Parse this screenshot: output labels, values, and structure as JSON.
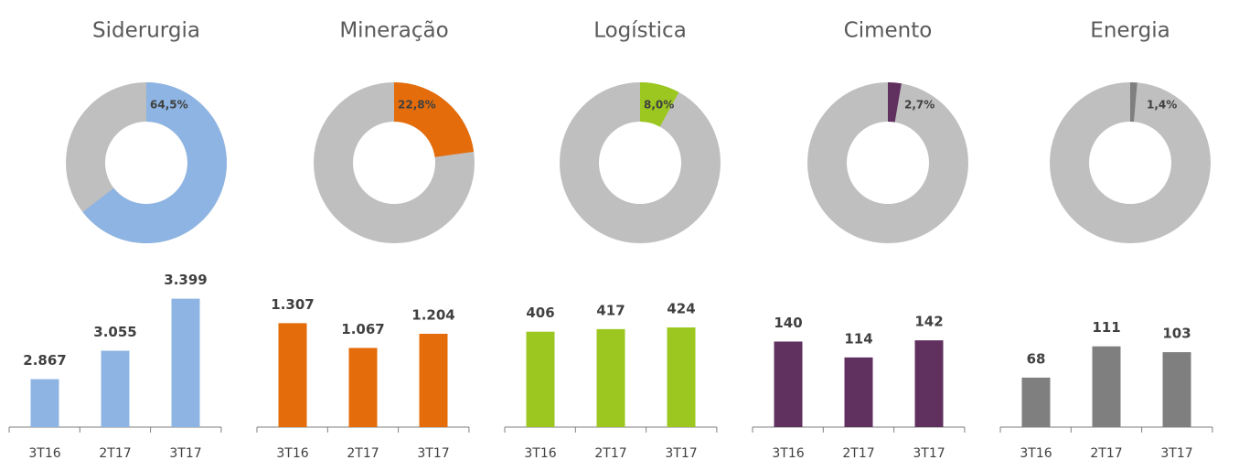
{
  "chart_data": [
    {
      "type": "donut",
      "title": "Siderurgia",
      "values": [
        64.5
      ],
      "value_labels": [
        "64,5%"
      ],
      "color": "#8db4e2",
      "track_color": "#bfbfbf"
    },
    {
      "type": "donut",
      "title": "Mineração",
      "values": [
        22.8
      ],
      "value_labels": [
        "22,8%"
      ],
      "color": "#e46c0a",
      "track_color": "#bfbfbf"
    },
    {
      "type": "donut",
      "title": "Logística",
      "values": [
        8.0
      ],
      "value_labels": [
        "8,0%"
      ],
      "color": "#9bc720",
      "track_color": "#bfbfbf"
    },
    {
      "type": "donut",
      "title": "Cimento",
      "values": [
        2.7
      ],
      "value_labels": [
        "2,7%"
      ],
      "color": "#60305f",
      "track_color": "#bfbfbf"
    },
    {
      "type": "donut",
      "title": "Energia",
      "values": [
        1.4
      ],
      "value_labels": [
        "1,4%"
      ],
      "color": "#7f7f7f",
      "track_color": "#bfbfbf"
    },
    {
      "type": "bar",
      "categories": [
        "3T16",
        "2T17",
        "3T17"
      ],
      "values": [
        2867,
        3055,
        3399
      ],
      "value_labels": [
        "2.867",
        "3.055",
        "3.399"
      ],
      "color": "#8db4e2",
      "ylim": [
        2550,
        3560
      ]
    },
    {
      "type": "bar",
      "categories": [
        "3T16",
        "2T17",
        "3T17"
      ],
      "values": [
        1307,
        1067,
        1204
      ],
      "value_labels": [
        "1.307",
        "1.067",
        "1.204"
      ],
      "color": "#e46c0a",
      "ylim": [
        300,
        1780
      ]
    },
    {
      "type": "bar",
      "categories": [
        "3T16",
        "2T17",
        "3T17"
      ],
      "values": [
        406,
        417,
        424
      ],
      "color": "#9bc720",
      "ylim": [
        0,
        650
      ]
    },
    {
      "type": "bar",
      "categories": [
        "3T16",
        "2T17",
        "3T17"
      ],
      "values": [
        140,
        114,
        142
      ],
      "color": "#60305f",
      "ylim": [
        0,
        250
      ]
    },
    {
      "type": "bar",
      "categories": [
        "3T16",
        "2T17",
        "3T17"
      ],
      "values": [
        68,
        111,
        103
      ],
      "color": "#7f7f7f",
      "ylim": [
        0,
        210
      ]
    }
  ]
}
